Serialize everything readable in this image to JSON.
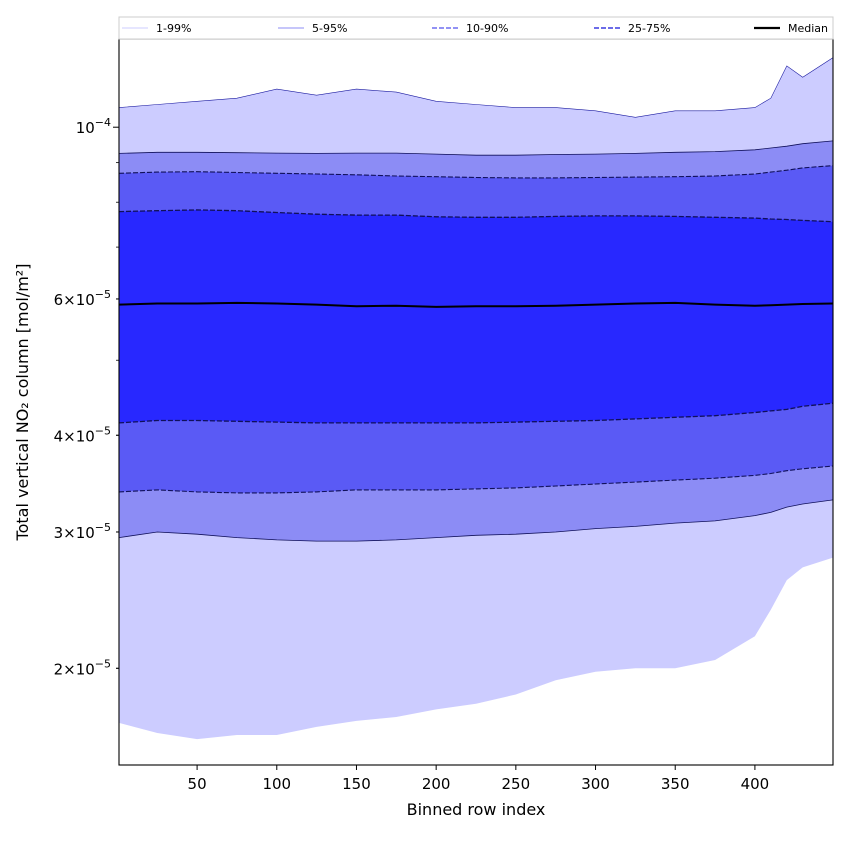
{
  "chart_data": {
    "type": "area",
    "xlabel": "Binned row index",
    "ylabel": "Total vertical NO₂ column [mol/m²]",
    "y_scale": "log",
    "xlim": [
      1,
      449
    ],
    "ylim": [
      1.5e-05,
      0.00013
    ],
    "x_ticks": [
      50,
      100,
      150,
      200,
      250,
      300,
      350,
      400
    ],
    "x_tick_labels": [
      "50",
      "100",
      "150",
      "200",
      "250",
      "300",
      "350",
      "400"
    ],
    "y_ticks": [
      {
        "value": 2e-05,
        "mantissa": "2",
        "exp": "−5"
      },
      {
        "value": 3e-05,
        "mantissa": "3",
        "exp": "−5"
      },
      {
        "value": 4e-05,
        "mantissa": "4",
        "exp": "−5"
      },
      {
        "value": 6e-05,
        "mantissa": "6",
        "exp": "−5"
      },
      {
        "value": 0.0001,
        "mantissa": "10",
        "exp": "−4"
      }
    ],
    "legend": {
      "placement": "top",
      "entries": [
        {
          "label": "1-99%",
          "style": "band-line",
          "color": "#ccccff"
        },
        {
          "label": "5-95%",
          "style": "band-line",
          "color": "#8c8cf5"
        },
        {
          "label": "10-90%",
          "style": "band-dashed",
          "color": "#6e6ef0"
        },
        {
          "label": "25-75%",
          "style": "band-dashed",
          "color": "#3c3ce0"
        },
        {
          "label": "Median",
          "style": "solid",
          "color": "#000000"
        }
      ]
    },
    "x": [
      1,
      25,
      50,
      75,
      100,
      125,
      150,
      175,
      200,
      225,
      250,
      275,
      300,
      325,
      350,
      375,
      400,
      410,
      420,
      430,
      449
    ],
    "bands": [
      {
        "name": "1-99%",
        "color": "#ccccff",
        "lower": [
          1.7e-05,
          1.65e-05,
          1.62e-05,
          1.64e-05,
          1.64e-05,
          1.68e-05,
          1.71e-05,
          1.73e-05,
          1.77e-05,
          1.8e-05,
          1.85e-05,
          1.93e-05,
          1.98e-05,
          2e-05,
          2e-05,
          2.05e-05,
          2.2e-05,
          2.38e-05,
          2.6e-05,
          2.7e-05,
          2.78e-05
        ],
        "upper": [
          0.000106,
          0.000107,
          0.000108,
          0.000109,
          0.000112,
          0.00011,
          0.000112,
          0.000111,
          0.000108,
          0.000107,
          0.000106,
          0.000106,
          0.000105,
          0.000103,
          0.000105,
          0.000105,
          0.000106,
          0.000109,
          0.00012,
          0.000116,
          0.000123
        ]
      },
      {
        "name": "5-95%",
        "color": "#8c8cf5",
        "lower": [
          2.95e-05,
          3e-05,
          2.98e-05,
          2.95e-05,
          2.93e-05,
          2.92e-05,
          2.92e-05,
          2.93e-05,
          2.95e-05,
          2.97e-05,
          2.98e-05,
          3e-05,
          3.03e-05,
          3.05e-05,
          3.08e-05,
          3.1e-05,
          3.15e-05,
          3.18e-05,
          3.23e-05,
          3.26e-05,
          3.3e-05
        ],
        "upper": [
          9.25e-05,
          9.28e-05,
          9.28e-05,
          9.27e-05,
          9.26e-05,
          9.25e-05,
          9.26e-05,
          9.26e-05,
          9.23e-05,
          9.2e-05,
          9.2e-05,
          9.22e-05,
          9.23e-05,
          9.25e-05,
          9.28e-05,
          9.3e-05,
          9.35e-05,
          9.4e-05,
          9.45e-05,
          9.52e-05,
          9.6e-05
        ]
      },
      {
        "name": "10-90%",
        "color": "#5a5af5",
        "lower": [
          3.38e-05,
          3.4e-05,
          3.38e-05,
          3.37e-05,
          3.37e-05,
          3.38e-05,
          3.4e-05,
          3.4e-05,
          3.4e-05,
          3.41e-05,
          3.42e-05,
          3.44e-05,
          3.46e-05,
          3.48e-05,
          3.5e-05,
          3.52e-05,
          3.55e-05,
          3.57e-05,
          3.6e-05,
          3.62e-05,
          3.65e-05
        ],
        "upper": [
          8.72e-05,
          8.75e-05,
          8.76e-05,
          8.74e-05,
          8.72e-05,
          8.7e-05,
          8.68e-05,
          8.65e-05,
          8.63e-05,
          8.61e-05,
          8.6e-05,
          8.6e-05,
          8.61e-05,
          8.62e-05,
          8.63e-05,
          8.65e-05,
          8.7e-05,
          8.75e-05,
          8.8e-05,
          8.86e-05,
          8.92e-05
        ]
      },
      {
        "name": "25-75%",
        "color": "#2828ff",
        "lower": [
          4.15e-05,
          4.18e-05,
          4.18e-05,
          4.17e-05,
          4.16e-05,
          4.15e-05,
          4.15e-05,
          4.15e-05,
          4.15e-05,
          4.15e-05,
          4.16e-05,
          4.17e-05,
          4.18e-05,
          4.2e-05,
          4.22e-05,
          4.24e-05,
          4.28e-05,
          4.3e-05,
          4.32e-05,
          4.36e-05,
          4.4e-05
        ],
        "upper": [
          7.78e-05,
          7.8e-05,
          7.82e-05,
          7.8e-05,
          7.76e-05,
          7.72e-05,
          7.7e-05,
          7.7e-05,
          7.66e-05,
          7.65e-05,
          7.65e-05,
          7.67e-05,
          7.68e-05,
          7.68e-05,
          7.67e-05,
          7.65e-05,
          7.63e-05,
          7.61e-05,
          7.6e-05,
          7.58e-05,
          7.55e-05
        ]
      }
    ],
    "median": [
      5.9e-05,
      5.92e-05,
      5.92e-05,
      5.93e-05,
      5.92e-05,
      5.9e-05,
      5.87e-05,
      5.88e-05,
      5.86e-05,
      5.87e-05,
      5.87e-05,
      5.88e-05,
      5.9e-05,
      5.92e-05,
      5.93e-05,
      5.9e-05,
      5.88e-05,
      5.89e-05,
      5.9e-05,
      5.91e-05,
      5.92e-05
    ]
  }
}
